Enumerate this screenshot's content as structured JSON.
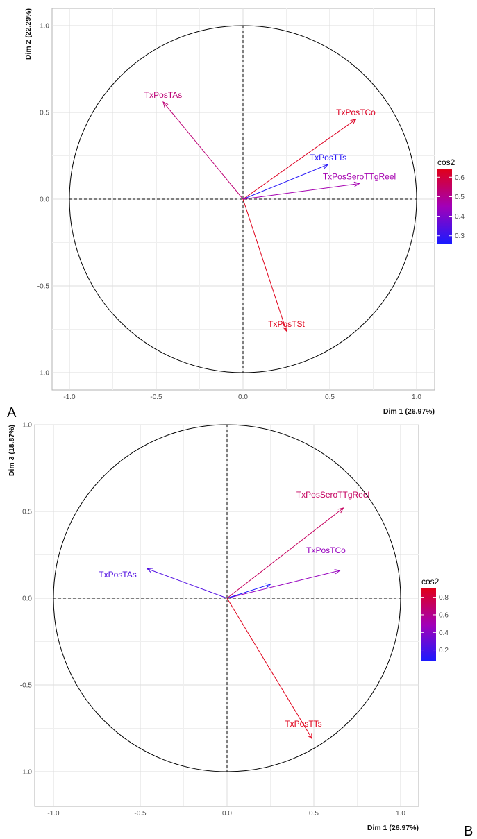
{
  "panels": [
    {
      "letter": "A"
    },
    {
      "letter": "B"
    }
  ],
  "chart_data": [
    {
      "type": "scatter",
      "subtype": "pca-variable-correlation-circle",
      "title": "",
      "xlabel": "Dim 1 (26.97%)",
      "ylabel": "Dim 2 (22.29%)",
      "xlim": [
        -1.0,
        1.0
      ],
      "ylim": [
        -1.0,
        1.0
      ],
      "xticks": [
        -1.0,
        -0.5,
        0.0,
        0.5,
        1.0
      ],
      "yticks": [
        -1.0,
        -0.5,
        0.0,
        0.5,
        1.0
      ],
      "xtick_labels": [
        "-1.0",
        "-0.5",
        "0.0",
        "0.5",
        "1.0"
      ],
      "ytick_labels": [
        "-1.0",
        "-0.5",
        "0.0",
        "0.5",
        "1.0"
      ],
      "grid": true,
      "legend": {
        "title": "cos2",
        "position": "right",
        "ticks": [
          0.3,
          0.4,
          0.5,
          0.6
        ],
        "tick_labels": [
          "0.3",
          "0.4",
          "0.5",
          "0.6"
        ],
        "min": 0.26,
        "max": 0.64,
        "low_color": "#1a1aff",
        "mid_color": "#a200b8",
        "high_color": "#e0001a"
      },
      "series": [
        {
          "name": "TxPosTAs",
          "x": -0.46,
          "y": 0.56,
          "cos2": 0.53
        },
        {
          "name": "TxPosTCo",
          "x": 0.65,
          "y": 0.46,
          "cos2": 0.63
        },
        {
          "name": "TxPosTTs",
          "x": 0.49,
          "y": 0.2,
          "cos2": 0.28
        },
        {
          "name": "TxPosSeroTTgReel",
          "x": 0.67,
          "y": 0.09,
          "cos2": 0.46
        },
        {
          "name": "TxPosTSt",
          "x": 0.25,
          "y": -0.76,
          "cos2": 0.64
        }
      ]
    },
    {
      "type": "scatter",
      "subtype": "pca-variable-correlation-circle",
      "title": "",
      "xlabel": "Dim 1 (26.97%)",
      "ylabel": "Dim 3 (18.87%)",
      "xlim": [
        -1.0,
        1.0
      ],
      "ylim": [
        -1.0,
        1.0
      ],
      "xticks": [
        -1.0,
        -0.5,
        0.0,
        0.5,
        1.0
      ],
      "yticks": [
        -1.0,
        -0.5,
        0.0,
        0.5,
        1.0
      ],
      "xtick_labels": [
        "-1.0",
        "-0.5",
        "0.0",
        "0.5",
        "1.0"
      ],
      "ytick_labels": [
        "-1.0",
        "-0.5",
        "0.0",
        "0.5",
        "1.0"
      ],
      "grid": true,
      "legend": {
        "title": "cos2",
        "position": "right",
        "ticks": [
          0.2,
          0.4,
          0.6,
          0.8
        ],
        "tick_labels": [
          "0.2",
          "0.4",
          "0.6",
          "0.8"
        ],
        "min": 0.07,
        "max": 0.9,
        "low_color": "#1a1aff",
        "mid_color": "#a200b8",
        "high_color": "#e0001a"
      },
      "series": [
        {
          "name": "TxPosTAs",
          "x": -0.46,
          "y": 0.17,
          "cos2": 0.24,
          "label_x": -0.63,
          "label_y": 0.12
        },
        {
          "name": "TxPosSeroTTgReel",
          "x": 0.67,
          "y": 0.52,
          "cos2": 0.72,
          "label_x": 0.61,
          "label_y": 0.58
        },
        {
          "name": "TxPosTCo",
          "x": 0.65,
          "y": 0.16,
          "cos2": 0.45,
          "label_x": 0.57,
          "label_y": 0.26
        },
        {
          "name": "",
          "x": 0.25,
          "y": 0.08,
          "cos2": 0.07
        },
        {
          "name": "TxPosTTs",
          "x": 0.49,
          "y": -0.81,
          "cos2": 0.9,
          "label_x": 0.44,
          "label_y": -0.74
        }
      ]
    }
  ]
}
